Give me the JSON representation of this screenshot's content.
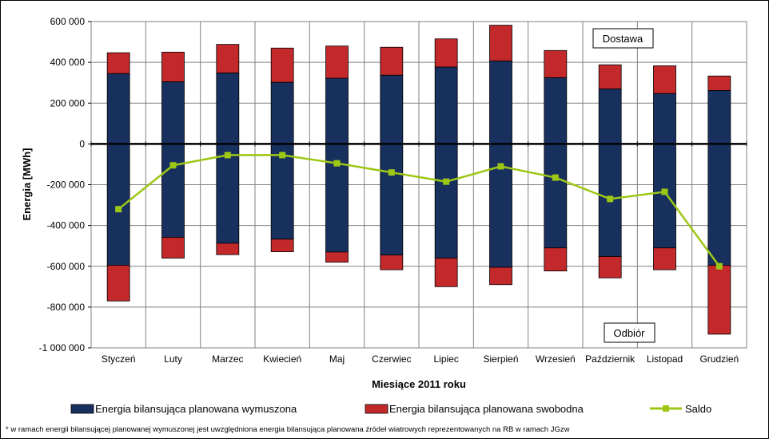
{
  "chart_data": {
    "type": "bar",
    "stacked": true,
    "title": "",
    "ylabel": "Energia [MWh]",
    "xlabel": "Miesiące 2011  roku",
    "ylim": [
      -1000000,
      600000
    ],
    "ytick_step": 200000,
    "ytick_labels": [
      "600 000",
      "400 000",
      "200 000",
      "0",
      "-200 000",
      "-400 000",
      "-600 000",
      "-800 000",
      "-1 000 000"
    ],
    "grid": true,
    "categories": [
      "Styczeń",
      "Luty",
      "Marzec",
      "Kwiecień",
      "Maj",
      "Czerwiec",
      "Lipiec",
      "Sierpień",
      "Wrzesień",
      "Październik",
      "Listopad",
      "Grudzień"
    ],
    "series": [
      {
        "name": "Energia bilansująca planowana wymuszona",
        "color": "#17305e",
        "positive": [
          345000,
          305000,
          348000,
          302000,
          322000,
          337000,
          377000,
          407000,
          325000,
          270000,
          247000,
          262000
        ],
        "negative": [
          -595000,
          -458000,
          -487000,
          -467000,
          -530000,
          -545000,
          -560000,
          -605000,
          -510000,
          -552000,
          -510000,
          -595000
        ]
      },
      {
        "name": "Energia bilansująca planowana swobodna",
        "color": "#c3282b",
        "positive": [
          102000,
          145000,
          140000,
          168000,
          158000,
          137000,
          138000,
          175000,
          133000,
          118000,
          136000,
          71000
        ],
        "negative": [
          -175000,
          -102000,
          -56000,
          -62000,
          -50000,
          -72000,
          -140000,
          -85000,
          -113000,
          -105000,
          -107000,
          -338000
        ]
      },
      {
        "name": "Saldo",
        "type": "line",
        "color": "#9dc715",
        "values": [
          -320000,
          -105000,
          -55000,
          -55000,
          -95000,
          -140000,
          -185000,
          -110000,
          -165000,
          -270000,
          -235000,
          -600000
        ]
      }
    ],
    "annotations": [
      "Dostawa",
      "Odbiór"
    ],
    "legend_position": "bottom"
  },
  "labels": {
    "dostawa": "Dostawa",
    "odbior": "Odbiór"
  },
  "footnote": "* w ramach energii bilansującej planowanej wymuszonej jest uwzględniona energia bilansująca planowana źródeł wiatrowych reprezentowanych na RB w ramach JGzw"
}
